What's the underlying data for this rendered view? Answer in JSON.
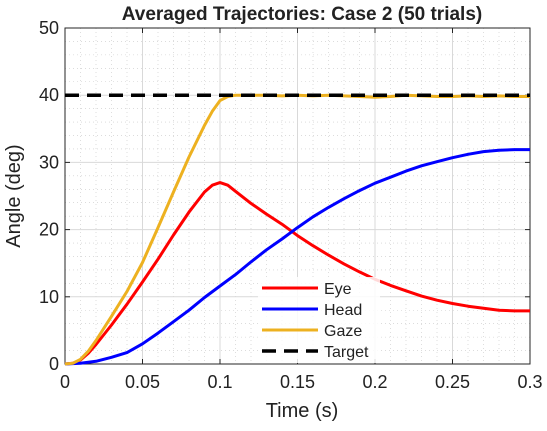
{
  "chart_data": {
    "type": "line",
    "title": "Averaged Trajectories: Case 2 (50 trials)",
    "xlabel": "Time (s)",
    "ylabel": "Angle (deg)",
    "xlim": [
      0,
      0.3
    ],
    "ylim": [
      0,
      50
    ],
    "xticks": [
      0,
      0.05,
      0.1,
      0.15,
      0.2,
      0.25,
      0.3
    ],
    "xtick_labels": [
      "0",
      "0.05",
      "0.1",
      "0.15",
      "0.2",
      "0.25",
      "0.3"
    ],
    "yticks": [
      0,
      10,
      20,
      30,
      40,
      50
    ],
    "ytick_labels": [
      "0",
      "10",
      "20",
      "30",
      "40",
      "50"
    ],
    "grid": true,
    "minor_grid": true,
    "legend_position": "bottom-center",
    "series": [
      {
        "name": "Eye",
        "color": "#ff0000",
        "style": "solid",
        "x": [
          0,
          0.005,
          0.01,
          0.015,
          0.02,
          0.03,
          0.04,
          0.05,
          0.06,
          0.07,
          0.08,
          0.09,
          0.095,
          0.1,
          0.105,
          0.11,
          0.12,
          0.13,
          0.14,
          0.15,
          0.16,
          0.17,
          0.18,
          0.19,
          0.2,
          0.21,
          0.22,
          0.23,
          0.24,
          0.25,
          0.26,
          0.27,
          0.28,
          0.29,
          0.3
        ],
        "y": [
          0,
          0.1,
          0.6,
          1.6,
          2.9,
          5.8,
          8.9,
          12.2,
          15.6,
          19.2,
          22.6,
          25.6,
          26.6,
          27.0,
          26.6,
          25.7,
          23.9,
          22.3,
          20.8,
          19.1,
          17.6,
          16.2,
          14.9,
          13.7,
          12.6,
          11.7,
          10.9,
          10.1,
          9.5,
          9.0,
          8.6,
          8.3,
          8.0,
          7.9,
          7.9
        ]
      },
      {
        "name": "Head",
        "color": "#0000ff",
        "style": "solid",
        "x": [
          0,
          0.01,
          0.02,
          0.03,
          0.04,
          0.05,
          0.06,
          0.07,
          0.08,
          0.09,
          0.1,
          0.11,
          0.12,
          0.13,
          0.14,
          0.15,
          0.16,
          0.17,
          0.18,
          0.19,
          0.2,
          0.21,
          0.22,
          0.23,
          0.24,
          0.25,
          0.26,
          0.27,
          0.28,
          0.29,
          0.3
        ],
        "y": [
          0,
          0.1,
          0.4,
          1.0,
          1.7,
          3.0,
          4.6,
          6.3,
          8.0,
          9.9,
          11.6,
          13.3,
          15.2,
          17.0,
          18.6,
          20.3,
          21.9,
          23.3,
          24.6,
          25.8,
          26.9,
          27.8,
          28.7,
          29.5,
          30.1,
          30.7,
          31.2,
          31.6,
          31.8,
          31.9,
          31.9
        ]
      },
      {
        "name": "Gaze",
        "color": "#edb120",
        "style": "solid",
        "x": [
          0,
          0.005,
          0.01,
          0.015,
          0.02,
          0.03,
          0.04,
          0.05,
          0.06,
          0.07,
          0.08,
          0.09,
          0.095,
          0.1,
          0.105,
          0.11,
          0.12,
          0.13,
          0.14,
          0.15,
          0.16,
          0.17,
          0.18,
          0.19,
          0.2,
          0.21,
          0.22,
          0.23,
          0.24,
          0.25,
          0.26,
          0.27,
          0.28,
          0.29,
          0.3
        ],
        "y": [
          0,
          0.1,
          0.7,
          1.9,
          3.5,
          7.1,
          10.8,
          15.1,
          20.3,
          25.6,
          30.8,
          35.5,
          37.6,
          39.2,
          39.8,
          40.0,
          40.0,
          40.0,
          39.9,
          40.0,
          39.9,
          40.0,
          39.9,
          39.8,
          39.7,
          39.8,
          40.0,
          39.9,
          39.8,
          39.8,
          39.9,
          39.8,
          39.9,
          39.8,
          39.8
        ]
      },
      {
        "name": "Target",
        "color": "#000000",
        "style": "dashed",
        "x": [
          0,
          0.3
        ],
        "y": [
          40,
          40
        ]
      }
    ]
  }
}
